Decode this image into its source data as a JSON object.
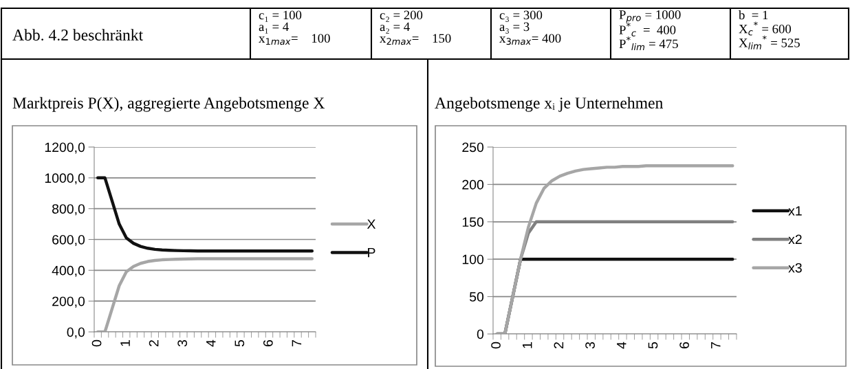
{
  "chart_data": [
    {
      "type": "line",
      "title": "Marktpreis P(X), aggregierte Angebotsmenge X",
      "annotations": [
        "Abb. 4.2 beschränkt",
        "c₁ = 100\na₁ = 4\nx$_{1max}$=    100",
        "c₂ = 200\na₂ = 4\nx$_{2max}$=    150",
        "c₃ = 300\na₃ = 3\nx$_{3max}$= 400",
        "P$_{pro}$ = 1000\nP$^{*}$$_{c}$  =  400\nP$^{*}$$_{lim}$ = 475",
        "b  = 1\nX$_{c}$$^{*}$ = 600\nX$_{lim}$$^{*}$ = 525"
      ],
      "categories": [
        "0",
        null,
        null,
        null,
        "1",
        null,
        null,
        null,
        "2",
        null,
        null,
        null,
        "3",
        null,
        null,
        null,
        "4",
        null,
        null,
        null,
        "5",
        null,
        null,
        null,
        "6",
        null,
        null,
        null,
        "7",
        null,
        null
      ],
      "series": [
        {
          "name": "X",
          "color": "#a6a6a6",
          "values": [
            0,
            0,
            150,
            300,
            390,
            425,
            445,
            457,
            464,
            468,
            470,
            472,
            473,
            474,
            475,
            475,
            475,
            475,
            475,
            475,
            475,
            475,
            475,
            475,
            475,
            475,
            475,
            475,
            475,
            475,
            475
          ]
        },
        {
          "name": "P",
          "color": "#111111",
          "values": [
            1000,
            1000,
            850,
            700,
            610,
            575,
            555,
            543,
            536,
            532,
            530,
            528,
            527,
            526,
            525,
            525,
            525,
            525,
            525,
            525,
            525,
            525,
            525,
            525,
            525,
            525,
            525,
            525,
            525,
            525,
            525
          ]
        }
      ],
      "ylim": [
        0,
        1200
      ],
      "yticks": [
        {
          "value": 0,
          "label": "0,0"
        },
        {
          "value": 200,
          "label": "200,0"
        },
        {
          "value": 400,
          "label": "400,0"
        },
        {
          "value": 600,
          "label": "600,0"
        },
        {
          "value": 800,
          "label": "800,0"
        },
        {
          "value": 1000,
          "label": "1000,0"
        },
        {
          "value": 1200,
          "label": "1200,0"
        }
      ],
      "grid": "y",
      "legend": "right",
      "marker": "none",
      "line_style": "solid"
    },
    {
      "type": "line",
      "title": "Angebotsmenge xᵢ je Unternehmen",
      "categories": [
        "0",
        null,
        null,
        null,
        "1",
        null,
        null,
        null,
        "2",
        null,
        null,
        null,
        "3",
        null,
        null,
        null,
        "4",
        null,
        null,
        null,
        "5",
        null,
        null,
        null,
        "6",
        null,
        null,
        null,
        "7",
        null,
        null
      ],
      "series": [
        {
          "name": "x1",
          "color": "#111111",
          "values": [
            0,
            0,
            50,
            100,
            100,
            100,
            100,
            100,
            100,
            100,
            100,
            100,
            100,
            100,
            100,
            100,
            100,
            100,
            100,
            100,
            100,
            100,
            100,
            100,
            100,
            100,
            100,
            100,
            100,
            100,
            100
          ]
        },
        {
          "name": "x2",
          "color": "#808080",
          "values": [
            0,
            0,
            50,
            100,
            135,
            150,
            150,
            150,
            150,
            150,
            150,
            150,
            150,
            150,
            150,
            150,
            150,
            150,
            150,
            150,
            150,
            150,
            150,
            150,
            150,
            150,
            150,
            150,
            150,
            150,
            150
          ]
        },
        {
          "name": "x3",
          "color": "#a6a6a6",
          "values": [
            0,
            0,
            50,
            100,
            143,
            175,
            195,
            205,
            211,
            215,
            218,
            220,
            221,
            222,
            223,
            223,
            224,
            224,
            224,
            225,
            225,
            225,
            225,
            225,
            225,
            225,
            225,
            225,
            225,
            225,
            225
          ]
        }
      ],
      "ylim": [
        0,
        250
      ],
      "yticks": [
        0,
        50,
        100,
        150,
        200,
        250
      ],
      "grid": "y",
      "legend": "right",
      "marker": "none",
      "line_style": "solid"
    }
  ]
}
